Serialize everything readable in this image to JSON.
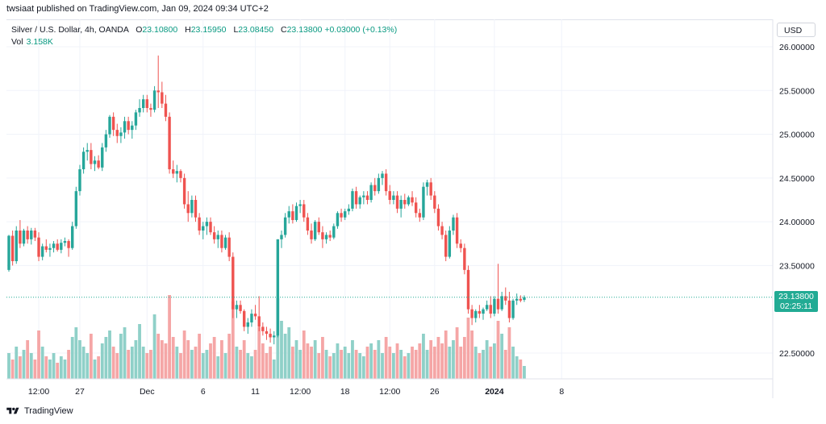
{
  "header": {
    "publisher_line": "twsiaat published on TradingView.com, Jan 09, 2024 09:34 UTC+2"
  },
  "legend": {
    "symbol": "Silver / U.S. Dollar, 4h, OANDA",
    "open_label": "O",
    "open": "23.10800",
    "high_label": "H",
    "high": "23.15950",
    "low_label": "L",
    "low": "23.08450",
    "close_label": "C",
    "close": "23.13800",
    "change": "+0.03000 (+0.13%)",
    "vol_label": "Vol",
    "vol": "3.158K"
  },
  "currency_button": "USD",
  "last_price": {
    "value": "23.13800",
    "countdown": "02:25:11"
  },
  "footer": {
    "brand": "TradingView",
    "logo_icon": "tradingview-logo-icon"
  },
  "colors": {
    "up": "#26a69a",
    "down": "#ef5350",
    "vol_up": "#8fd0c8",
    "vol_down": "#f5a6a6",
    "grid": "#f0f3fa"
  },
  "chart_data": {
    "type": "candlestick",
    "y_axis": {
      "side": "right",
      "ticks": [
        "26.00000",
        "25.50000",
        "25.00000",
        "24.50000",
        "24.00000",
        "23.50000",
        "22.50000"
      ],
      "tick_values": [
        26.0,
        25.5,
        25.0,
        24.5,
        24.0,
        23.5,
        22.5
      ],
      "range": [
        22.2,
        26.2
      ]
    },
    "x_axis": {
      "ticks": [
        "12:00",
        "27",
        "Dec",
        "6",
        "11",
        "12:00",
        "18",
        "12:00",
        "26",
        "2024",
        "8"
      ],
      "tick_index": [
        8,
        19,
        37,
        52,
        66,
        78,
        90,
        102,
        114,
        130,
        148
      ]
    },
    "grid": true,
    "candles": [
      {
        "o": 23.45,
        "h": 23.85,
        "l": 23.43,
        "c": 23.84,
        "v": 0.8
      },
      {
        "o": 23.84,
        "h": 23.9,
        "l": 23.5,
        "c": 23.55,
        "v": 0.6
      },
      {
        "o": 23.55,
        "h": 23.95,
        "l": 23.52,
        "c": 23.9,
        "v": 1.0
      },
      {
        "o": 23.9,
        "h": 24.02,
        "l": 23.7,
        "c": 23.75,
        "v": 0.7
      },
      {
        "o": 23.75,
        "h": 23.92,
        "l": 23.72,
        "c": 23.9,
        "v": 0.9
      },
      {
        "o": 23.9,
        "h": 23.95,
        "l": 23.75,
        "c": 23.8,
        "v": 1.2
      },
      {
        "o": 23.8,
        "h": 23.93,
        "l": 23.74,
        "c": 23.9,
        "v": 0.8
      },
      {
        "o": 23.9,
        "h": 23.93,
        "l": 23.78,
        "c": 23.82,
        "v": 0.6
      },
      {
        "o": 23.82,
        "h": 23.88,
        "l": 23.55,
        "c": 23.6,
        "v": 1.5
      },
      {
        "o": 23.6,
        "h": 23.75,
        "l": 23.56,
        "c": 23.72,
        "v": 1.0
      },
      {
        "o": 23.72,
        "h": 23.8,
        "l": 23.65,
        "c": 23.68,
        "v": 0.7
      },
      {
        "o": 23.68,
        "h": 23.75,
        "l": 23.6,
        "c": 23.7,
        "v": 0.6
      },
      {
        "o": 23.7,
        "h": 23.78,
        "l": 23.65,
        "c": 23.75,
        "v": 0.8
      },
      {
        "o": 23.75,
        "h": 23.8,
        "l": 23.66,
        "c": 23.68,
        "v": 0.5
      },
      {
        "o": 23.68,
        "h": 23.8,
        "l": 23.64,
        "c": 23.76,
        "v": 0.7
      },
      {
        "o": 23.76,
        "h": 23.82,
        "l": 23.72,
        "c": 23.78,
        "v": 0.6
      },
      {
        "o": 23.78,
        "h": 23.8,
        "l": 23.6,
        "c": 23.7,
        "v": 0.9
      },
      {
        "o": 23.7,
        "h": 24.0,
        "l": 23.68,
        "c": 23.95,
        "v": 1.3
      },
      {
        "o": 23.95,
        "h": 24.4,
        "l": 23.92,
        "c": 24.35,
        "v": 1.6
      },
      {
        "o": 24.35,
        "h": 24.65,
        "l": 24.3,
        "c": 24.6,
        "v": 1.2
      },
      {
        "o": 24.6,
        "h": 24.85,
        "l": 24.55,
        "c": 24.8,
        "v": 1.0
      },
      {
        "o": 24.8,
        "h": 24.9,
        "l": 24.7,
        "c": 24.82,
        "v": 0.8
      },
      {
        "o": 24.82,
        "h": 24.9,
        "l": 24.6,
        "c": 24.66,
        "v": 1.4
      },
      {
        "o": 24.66,
        "h": 24.75,
        "l": 24.58,
        "c": 24.7,
        "v": 0.6
      },
      {
        "o": 24.7,
        "h": 24.76,
        "l": 24.6,
        "c": 24.62,
        "v": 0.7
      },
      {
        "o": 24.62,
        "h": 24.9,
        "l": 24.58,
        "c": 24.85,
        "v": 1.1
      },
      {
        "o": 24.85,
        "h": 25.05,
        "l": 24.8,
        "c": 25.0,
        "v": 1.3
      },
      {
        "o": 25.0,
        "h": 25.22,
        "l": 24.96,
        "c": 25.2,
        "v": 1.5
      },
      {
        "o": 25.2,
        "h": 25.25,
        "l": 24.98,
        "c": 25.05,
        "v": 1.0
      },
      {
        "o": 25.05,
        "h": 25.12,
        "l": 24.9,
        "c": 24.98,
        "v": 0.8
      },
      {
        "o": 24.98,
        "h": 25.08,
        "l": 24.9,
        "c": 25.02,
        "v": 1.4
      },
      {
        "o": 25.02,
        "h": 25.2,
        "l": 24.95,
        "c": 25.15,
        "v": 1.6
      },
      {
        "o": 25.15,
        "h": 25.2,
        "l": 25.0,
        "c": 25.05,
        "v": 0.9
      },
      {
        "o": 25.05,
        "h": 25.15,
        "l": 24.95,
        "c": 25.1,
        "v": 1.0
      },
      {
        "o": 25.1,
        "h": 25.28,
        "l": 25.05,
        "c": 25.25,
        "v": 1.2
      },
      {
        "o": 25.25,
        "h": 25.4,
        "l": 25.2,
        "c": 25.3,
        "v": 1.7
      },
      {
        "o": 25.3,
        "h": 25.45,
        "l": 25.25,
        "c": 25.4,
        "v": 1.0
      },
      {
        "o": 25.4,
        "h": 25.45,
        "l": 25.25,
        "c": 25.3,
        "v": 0.8
      },
      {
        "o": 25.3,
        "h": 25.35,
        "l": 25.2,
        "c": 25.28,
        "v": 0.9
      },
      {
        "o": 25.28,
        "h": 25.55,
        "l": 25.25,
        "c": 25.5,
        "v": 2.0
      },
      {
        "o": 25.5,
        "h": 25.9,
        "l": 25.3,
        "c": 25.48,
        "v": 1.4
      },
      {
        "o": 25.48,
        "h": 25.6,
        "l": 25.3,
        "c": 25.35,
        "v": 1.2
      },
      {
        "o": 25.35,
        "h": 25.45,
        "l": 25.15,
        "c": 25.2,
        "v": 1.1
      },
      {
        "o": 25.2,
        "h": 25.25,
        "l": 24.55,
        "c": 24.6,
        "v": 2.6
      },
      {
        "o": 24.6,
        "h": 24.7,
        "l": 24.5,
        "c": 24.55,
        "v": 1.3
      },
      {
        "o": 24.55,
        "h": 24.65,
        "l": 24.45,
        "c": 24.58,
        "v": 1.0
      },
      {
        "o": 24.58,
        "h": 24.6,
        "l": 24.45,
        "c": 24.5,
        "v": 0.8
      },
      {
        "o": 24.5,
        "h": 24.55,
        "l": 24.15,
        "c": 24.2,
        "v": 1.5
      },
      {
        "o": 24.2,
        "h": 24.35,
        "l": 24.0,
        "c": 24.1,
        "v": 1.2
      },
      {
        "o": 24.1,
        "h": 24.3,
        "l": 24.05,
        "c": 24.25,
        "v": 0.9
      },
      {
        "o": 24.25,
        "h": 24.3,
        "l": 24.0,
        "c": 24.05,
        "v": 1.0
      },
      {
        "o": 24.05,
        "h": 24.1,
        "l": 23.85,
        "c": 23.9,
        "v": 1.4
      },
      {
        "o": 23.9,
        "h": 24.0,
        "l": 23.8,
        "c": 23.95,
        "v": 0.8
      },
      {
        "o": 23.95,
        "h": 24.05,
        "l": 23.85,
        "c": 24.0,
        "v": 0.9
      },
      {
        "o": 24.0,
        "h": 24.05,
        "l": 23.85,
        "c": 23.88,
        "v": 1.1
      },
      {
        "o": 23.88,
        "h": 23.95,
        "l": 23.75,
        "c": 23.8,
        "v": 1.3
      },
      {
        "o": 23.8,
        "h": 23.9,
        "l": 23.7,
        "c": 23.85,
        "v": 0.7
      },
      {
        "o": 23.85,
        "h": 23.9,
        "l": 23.65,
        "c": 23.7,
        "v": 1.2
      },
      {
        "o": 23.7,
        "h": 23.85,
        "l": 23.68,
        "c": 23.82,
        "v": 0.8
      },
      {
        "o": 23.82,
        "h": 23.88,
        "l": 23.55,
        "c": 23.6,
        "v": 1.4
      },
      {
        "o": 23.6,
        "h": 23.65,
        "l": 22.9,
        "c": 23.0,
        "v": 2.4
      },
      {
        "o": 23.0,
        "h": 23.1,
        "l": 22.9,
        "c": 23.05,
        "v": 1.0
      },
      {
        "o": 23.05,
        "h": 23.1,
        "l": 22.95,
        "c": 22.98,
        "v": 0.9
      },
      {
        "o": 22.98,
        "h": 23.0,
        "l": 22.75,
        "c": 22.8,
        "v": 1.2
      },
      {
        "o": 22.8,
        "h": 22.9,
        "l": 22.72,
        "c": 22.85,
        "v": 0.8
      },
      {
        "o": 22.85,
        "h": 23.0,
        "l": 22.8,
        "c": 22.95,
        "v": 0.7
      },
      {
        "o": 22.95,
        "h": 23.05,
        "l": 22.88,
        "c": 22.92,
        "v": 0.9
      },
      {
        "o": 22.92,
        "h": 23.15,
        "l": 22.75,
        "c": 22.8,
        "v": 1.6
      },
      {
        "o": 22.8,
        "h": 22.85,
        "l": 22.7,
        "c": 22.75,
        "v": 1.1
      },
      {
        "o": 22.75,
        "h": 22.8,
        "l": 22.65,
        "c": 22.72,
        "v": 0.8
      },
      {
        "o": 22.72,
        "h": 22.78,
        "l": 22.62,
        "c": 22.68,
        "v": 1.0
      },
      {
        "o": 22.68,
        "h": 22.75,
        "l": 22.6,
        "c": 22.7,
        "v": 0.6
      },
      {
        "o": 22.7,
        "h": 23.8,
        "l": 22.68,
        "c": 23.8,
        "v": 2.5
      },
      {
        "o": 23.8,
        "h": 23.9,
        "l": 23.7,
        "c": 23.85,
        "v": 1.8
      },
      {
        "o": 23.85,
        "h": 24.1,
        "l": 23.82,
        "c": 24.05,
        "v": 1.4
      },
      {
        "o": 24.05,
        "h": 24.18,
        "l": 23.98,
        "c": 24.12,
        "v": 1.6
      },
      {
        "o": 24.12,
        "h": 24.2,
        "l": 23.98,
        "c": 24.02,
        "v": 1.0
      },
      {
        "o": 24.02,
        "h": 24.22,
        "l": 24.0,
        "c": 24.18,
        "v": 1.2
      },
      {
        "o": 24.18,
        "h": 24.25,
        "l": 24.1,
        "c": 24.2,
        "v": 0.9
      },
      {
        "o": 24.2,
        "h": 24.25,
        "l": 24.0,
        "c": 24.05,
        "v": 1.5
      },
      {
        "o": 24.05,
        "h": 24.1,
        "l": 23.85,
        "c": 23.9,
        "v": 1.1
      },
      {
        "o": 23.9,
        "h": 23.98,
        "l": 23.75,
        "c": 23.8,
        "v": 1.0
      },
      {
        "o": 23.8,
        "h": 24.02,
        "l": 23.78,
        "c": 24.0,
        "v": 1.2
      },
      {
        "o": 24.0,
        "h": 24.05,
        "l": 23.85,
        "c": 23.88,
        "v": 0.8
      },
      {
        "o": 23.88,
        "h": 23.95,
        "l": 23.7,
        "c": 23.8,
        "v": 1.3
      },
      {
        "o": 23.8,
        "h": 23.88,
        "l": 23.75,
        "c": 23.85,
        "v": 0.9
      },
      {
        "o": 23.85,
        "h": 23.9,
        "l": 23.78,
        "c": 23.82,
        "v": 0.7
      },
      {
        "o": 23.82,
        "h": 23.98,
        "l": 23.8,
        "c": 23.95,
        "v": 0.8
      },
      {
        "o": 23.95,
        "h": 24.12,
        "l": 23.92,
        "c": 24.1,
        "v": 1.1
      },
      {
        "o": 24.1,
        "h": 24.15,
        "l": 24.0,
        "c": 24.05,
        "v": 0.9
      },
      {
        "o": 24.05,
        "h": 24.15,
        "l": 24.02,
        "c": 24.12,
        "v": 1.0
      },
      {
        "o": 24.12,
        "h": 24.2,
        "l": 24.08,
        "c": 24.15,
        "v": 0.8
      },
      {
        "o": 24.15,
        "h": 24.38,
        "l": 24.12,
        "c": 24.35,
        "v": 1.2
      },
      {
        "o": 24.35,
        "h": 24.4,
        "l": 24.15,
        "c": 24.2,
        "v": 0.9
      },
      {
        "o": 24.2,
        "h": 24.3,
        "l": 24.15,
        "c": 24.28,
        "v": 0.8
      },
      {
        "o": 24.28,
        "h": 24.35,
        "l": 24.2,
        "c": 24.3,
        "v": 0.7
      },
      {
        "o": 24.3,
        "h": 24.35,
        "l": 24.2,
        "c": 24.25,
        "v": 1.0
      },
      {
        "o": 24.25,
        "h": 24.45,
        "l": 24.22,
        "c": 24.42,
        "v": 1.1
      },
      {
        "o": 24.42,
        "h": 24.5,
        "l": 24.3,
        "c": 24.35,
        "v": 0.9
      },
      {
        "o": 24.35,
        "h": 24.55,
        "l": 24.32,
        "c": 24.5,
        "v": 1.2
      },
      {
        "o": 24.5,
        "h": 24.58,
        "l": 24.42,
        "c": 24.55,
        "v": 0.8
      },
      {
        "o": 24.55,
        "h": 24.6,
        "l": 24.3,
        "c": 24.35,
        "v": 1.3
      },
      {
        "o": 24.35,
        "h": 24.42,
        "l": 24.2,
        "c": 24.25,
        "v": 1.0
      },
      {
        "o": 24.25,
        "h": 24.35,
        "l": 24.2,
        "c": 24.3,
        "v": 0.8
      },
      {
        "o": 24.3,
        "h": 24.35,
        "l": 24.1,
        "c": 24.15,
        "v": 1.1
      },
      {
        "o": 24.15,
        "h": 24.3,
        "l": 24.05,
        "c": 24.25,
        "v": 0.9
      },
      {
        "o": 24.25,
        "h": 24.32,
        "l": 24.15,
        "c": 24.2,
        "v": 0.7
      },
      {
        "o": 24.2,
        "h": 24.3,
        "l": 24.18,
        "c": 24.28,
        "v": 0.8
      },
      {
        "o": 24.28,
        "h": 24.35,
        "l": 24.18,
        "c": 24.22,
        "v": 1.0
      },
      {
        "o": 24.22,
        "h": 24.28,
        "l": 24.05,
        "c": 24.1,
        "v": 0.9
      },
      {
        "o": 24.1,
        "h": 24.15,
        "l": 24.0,
        "c": 24.05,
        "v": 1.1
      },
      {
        "o": 24.05,
        "h": 24.45,
        "l": 24.02,
        "c": 24.4,
        "v": 1.4
      },
      {
        "o": 24.4,
        "h": 24.48,
        "l": 24.3,
        "c": 24.45,
        "v": 0.9
      },
      {
        "o": 24.45,
        "h": 24.5,
        "l": 24.25,
        "c": 24.3,
        "v": 1.2
      },
      {
        "o": 24.3,
        "h": 24.35,
        "l": 24.1,
        "c": 24.15,
        "v": 1.0
      },
      {
        "o": 24.15,
        "h": 24.2,
        "l": 23.9,
        "c": 23.95,
        "v": 1.3
      },
      {
        "o": 23.95,
        "h": 24.0,
        "l": 23.8,
        "c": 23.85,
        "v": 1.1
      },
      {
        "o": 23.85,
        "h": 23.9,
        "l": 23.55,
        "c": 23.6,
        "v": 1.5
      },
      {
        "o": 23.6,
        "h": 23.95,
        "l": 23.58,
        "c": 23.9,
        "v": 1.0
      },
      {
        "o": 23.9,
        "h": 24.08,
        "l": 23.85,
        "c": 24.05,
        "v": 1.2
      },
      {
        "o": 24.05,
        "h": 24.1,
        "l": 23.7,
        "c": 23.75,
        "v": 1.6
      },
      {
        "o": 23.75,
        "h": 23.8,
        "l": 23.65,
        "c": 23.7,
        "v": 1.0
      },
      {
        "o": 23.7,
        "h": 23.75,
        "l": 23.4,
        "c": 23.45,
        "v": 1.3
      },
      {
        "o": 23.45,
        "h": 23.5,
        "l": 22.95,
        "c": 23.0,
        "v": 1.9
      },
      {
        "o": 23.0,
        "h": 23.05,
        "l": 22.82,
        "c": 22.9,
        "v": 1.5
      },
      {
        "o": 22.9,
        "h": 23.0,
        "l": 22.85,
        "c": 22.98,
        "v": 1.0
      },
      {
        "o": 22.98,
        "h": 23.05,
        "l": 22.9,
        "c": 22.95,
        "v": 0.8
      },
      {
        "o": 22.95,
        "h": 23.02,
        "l": 22.88,
        "c": 23.0,
        "v": 0.9
      },
      {
        "o": 23.0,
        "h": 23.1,
        "l": 22.98,
        "c": 23.05,
        "v": 1.2
      },
      {
        "o": 23.05,
        "h": 23.15,
        "l": 22.9,
        "c": 22.95,
        "v": 1.0
      },
      {
        "o": 22.95,
        "h": 23.15,
        "l": 22.92,
        "c": 23.12,
        "v": 1.1
      },
      {
        "o": 23.12,
        "h": 23.52,
        "l": 22.95,
        "c": 23.0,
        "v": 1.8
      },
      {
        "o": 23.0,
        "h": 23.2,
        "l": 22.98,
        "c": 23.15,
        "v": 1.4
      },
      {
        "o": 23.15,
        "h": 23.25,
        "l": 23.05,
        "c": 23.1,
        "v": 0.9
      },
      {
        "o": 23.1,
        "h": 23.2,
        "l": 22.85,
        "c": 22.9,
        "v": 1.6
      },
      {
        "o": 22.9,
        "h": 23.12,
        "l": 22.88,
        "c": 23.1,
        "v": 1.0
      },
      {
        "o": 23.1,
        "h": 23.18,
        "l": 23.05,
        "c": 23.12,
        "v": 0.7
      },
      {
        "o": 23.12,
        "h": 23.16,
        "l": 23.08,
        "c": 23.1,
        "v": 0.6
      },
      {
        "o": 23.108,
        "h": 23.1595,
        "l": 23.0845,
        "c": 23.138,
        "v": 0.4
      }
    ]
  }
}
